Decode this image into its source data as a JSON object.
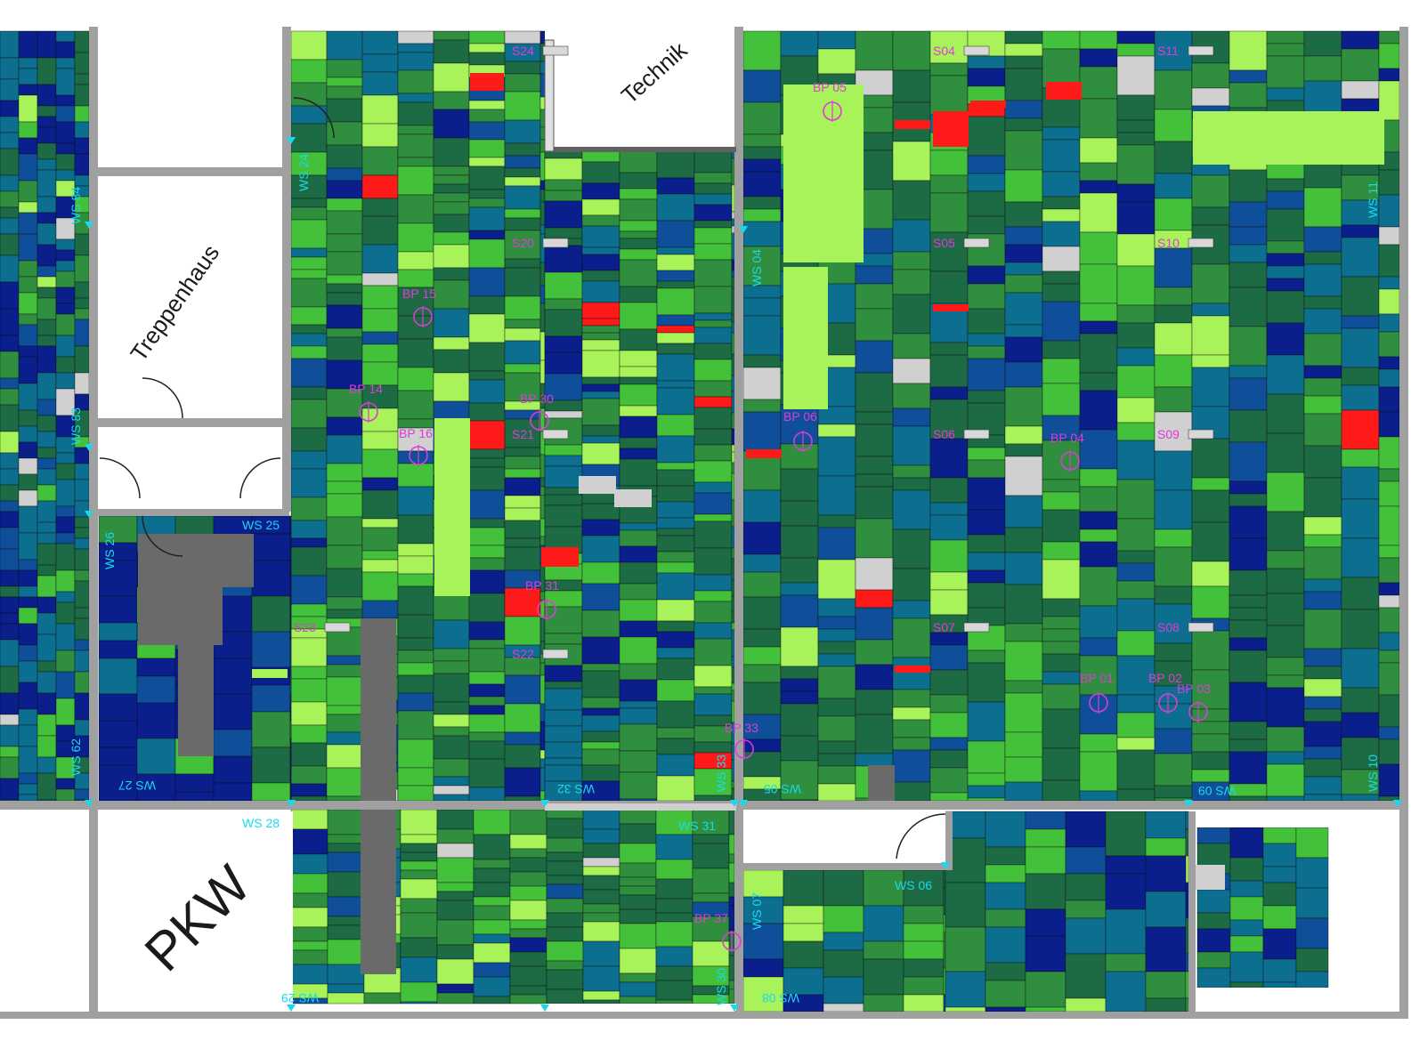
{
  "rooms": {
    "technik": "Technik",
    "treppenhaus": "Treppenhaus",
    "pkw": "PKW"
  },
  "colors": {
    "palette": [
      "#1c6b45",
      "#2f8f3e",
      "#44c13a",
      "#a8f25a",
      "#0d6f8f",
      "#0f4f9a",
      "#0b1f8c",
      "#6a6a6a",
      "#d0d0d0",
      "#ff1a1a"
    ],
    "wall": "#9a9a9a",
    "bp_label": "#e03ad8",
    "ws_label": "#17d9f0",
    "s_label": "#e03ad8"
  },
  "sensors": [
    {
      "id": "S24"
    },
    {
      "id": "S20"
    },
    {
      "id": "S21"
    },
    {
      "id": "S22"
    },
    {
      "id": "S23"
    },
    {
      "id": "S04"
    },
    {
      "id": "S11"
    },
    {
      "id": "S05"
    },
    {
      "id": "S10"
    },
    {
      "id": "S06"
    },
    {
      "id": "S09"
    },
    {
      "id": "S07"
    },
    {
      "id": "S08"
    }
  ],
  "bore_points": [
    {
      "id": "BP 15"
    },
    {
      "id": "BP 14"
    },
    {
      "id": "BP 16"
    },
    {
      "id": "BP 30"
    },
    {
      "id": "BP 31"
    },
    {
      "id": "BP 33"
    },
    {
      "id": "BP 37"
    },
    {
      "id": "BP 05"
    },
    {
      "id": "BP 06"
    },
    {
      "id": "BP 04"
    },
    {
      "id": "BP 01"
    },
    {
      "id": "BP 02"
    },
    {
      "id": "BP 03"
    }
  ],
  "wall_stations": [
    {
      "id": "WS 24"
    },
    {
      "id": "WS 84"
    },
    {
      "id": "WS 83"
    },
    {
      "id": "WS 62"
    },
    {
      "id": "WS 26"
    },
    {
      "id": "WS 25"
    },
    {
      "id": "WS 27"
    },
    {
      "id": "WS 28"
    },
    {
      "id": "WS 32"
    },
    {
      "id": "WS 33"
    },
    {
      "id": "WS 31"
    },
    {
      "id": "WS 30"
    },
    {
      "id": "WS 29"
    },
    {
      "id": "WS 04"
    },
    {
      "id": "WS 05"
    },
    {
      "id": "WS 11"
    },
    {
      "id": "WS 10"
    },
    {
      "id": "WS 09"
    },
    {
      "id": "WS 07"
    },
    {
      "id": "WS 06"
    },
    {
      "id": "WS 08"
    }
  ]
}
